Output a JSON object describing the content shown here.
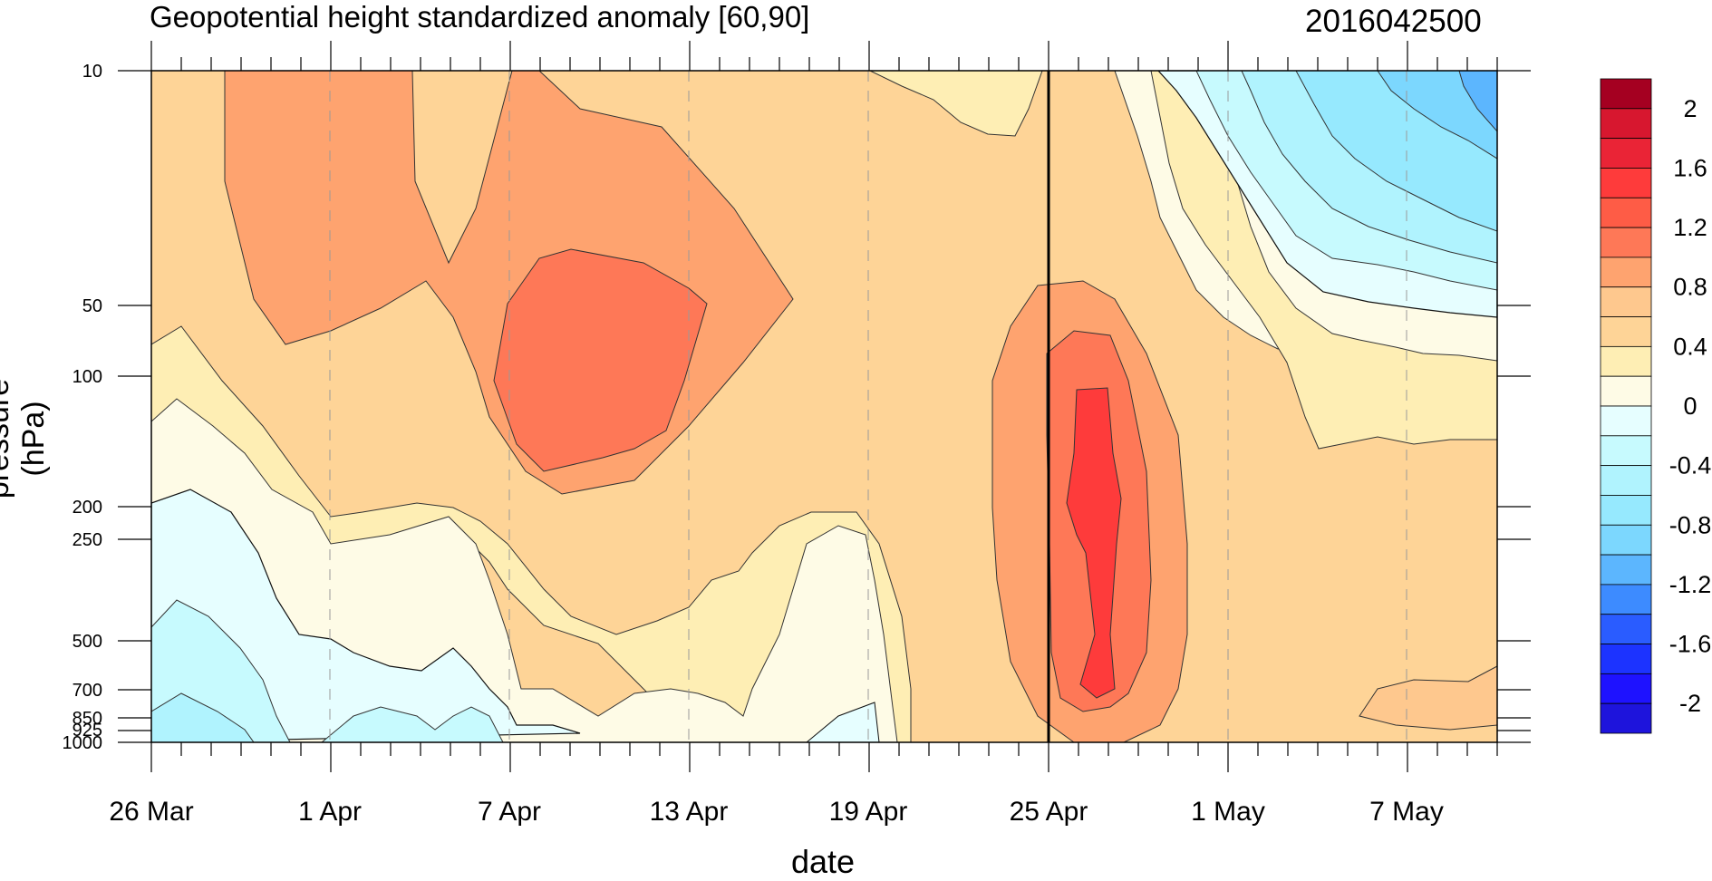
{
  "chart_data": {
    "type": "heatmap",
    "title": "Geopotential height standardized anomaly [60,90]",
    "run_label": "2016042500",
    "xlabel": "date",
    "ylabel": "pressure (hPa)",
    "x_tick_labels": [
      "26 Mar",
      "1 Apr",
      "7 Apr",
      "13 Apr",
      "19 Apr",
      "25 Apr",
      "1 May",
      "7 May"
    ],
    "x_range": [
      "2016-03-26",
      "2016-05-11"
    ],
    "y_tick_labels": [
      "10",
      "50",
      "100",
      "200",
      "250",
      "500",
      "700",
      "850",
      "925",
      "1000"
    ],
    "y_scale": "log (reversed)",
    "y_range": [
      1000,
      10
    ],
    "initial_date_line": "2016-04-25",
    "colorbar": {
      "labels": [
        "2",
        "1.6",
        "1.2",
        "0.8",
        "0.4",
        "0",
        "-0.4",
        "-0.8",
        "-1.2",
        "-1.6",
        "-2"
      ],
      "levels": [
        2.2,
        2.0,
        1.8,
        1.6,
        1.4,
        1.2,
        1.0,
        0.8,
        0.6,
        0.4,
        0.2,
        0.0,
        -0.2,
        -0.4,
        -0.6,
        -0.8,
        -1.0,
        -1.2,
        -1.4,
        -1.6,
        -1.8,
        -2.0,
        -2.2
      ],
      "colors": [
        "#a50021",
        "#d7172f",
        "#ea2436",
        "#fe3b3b",
        "#fe5c46",
        "#fe7857",
        "#fea36f",
        "#fec88e",
        "#fed497",
        "#feeeb4",
        "#fefbe6",
        "#e6feff",
        "#c7fafe",
        "#b0f3fe",
        "#96e9fe",
        "#7cd7fe",
        "#5cb6fe",
        "#3d8bff",
        "#2a5cff",
        "#1c33ff",
        "#1e12ff",
        "#1e14dc"
      ]
    },
    "features": [
      {
        "description": "positive anomaly near 50-120 hPa",
        "date_range": [
          "2016-04-07",
          "2016-04-13"
        ],
        "peak": 1.2
      },
      {
        "description": "positive anomaly column",
        "date_range": [
          "2016-04-24",
          "2016-04-29"
        ],
        "pressure_range": [
          50,
          1000
        ],
        "peak": 1.6
      },
      {
        "description": "negative anomaly upper stratosphere",
        "date_range": [
          "2016-04-30",
          "2016-05-11"
        ],
        "pressure_range": [
          10,
          50
        ],
        "min": -1.0
      },
      {
        "description": "negative anomaly lower troposphere",
        "date_range": [
          "2016-03-26",
          "2016-04-05"
        ],
        "pressure_range": [
          200,
          1000
        ],
        "min": -0.6
      }
    ]
  }
}
